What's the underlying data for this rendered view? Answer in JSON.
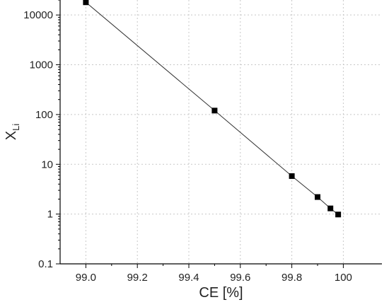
{
  "chart_data": {
    "type": "scatter",
    "xlabel": "CE [%]",
    "ylabel": {
      "main": "X",
      "subscript": "Li"
    },
    "xlim": [
      98.9,
      100.15
    ],
    "ylim": [
      0.1,
      20000
    ],
    "yscale": "log",
    "grid": true,
    "connect_points": true,
    "marker": "square",
    "colors": {
      "line": "#333333",
      "marker": "#000000",
      "grid": "#c8c8c8",
      "axis": "#000000"
    },
    "x_ticks": [
      "99.0",
      "99.2",
      "99.4",
      "99.6",
      "99.8",
      "100"
    ],
    "y_ticks": [
      "0.1",
      "1",
      "10",
      "100",
      "1000",
      "10000"
    ],
    "series": [
      {
        "x": [
          99.0,
          99.5,
          99.8,
          99.9,
          99.95,
          99.98
        ],
        "y": [
          18000,
          120,
          5.8,
          2.2,
          1.3,
          0.98
        ]
      }
    ]
  }
}
